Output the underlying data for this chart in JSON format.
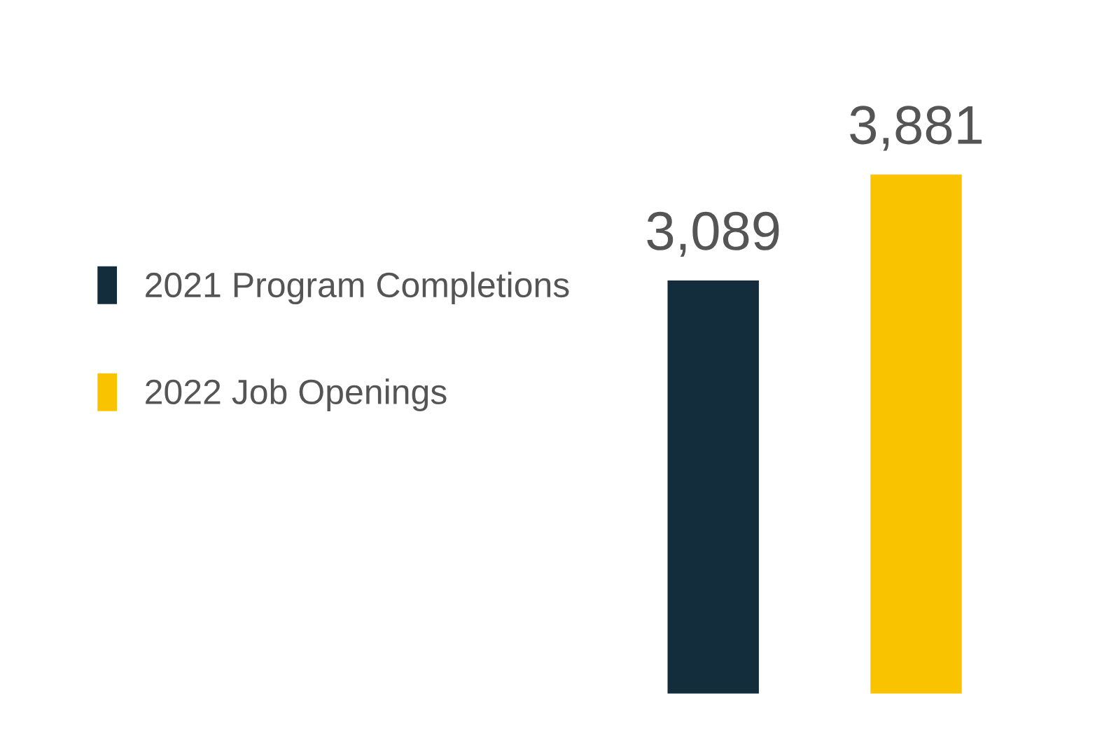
{
  "chart_data": {
    "type": "bar",
    "categories": [
      null,
      null
    ],
    "stacked": true,
    "series": [
      {
        "name": "2021 Program Completions",
        "color": "#132d3d",
        "values": [
          3089,
          0
        ],
        "value_labels": [
          "3,089",
          null
        ]
      },
      {
        "name": "2022 Job Openings",
        "color": "#fac300",
        "values": [
          0,
          3881
        ],
        "value_labels": [
          null,
          "3,881"
        ]
      }
    ],
    "legend": "left",
    "grid": false
  }
}
